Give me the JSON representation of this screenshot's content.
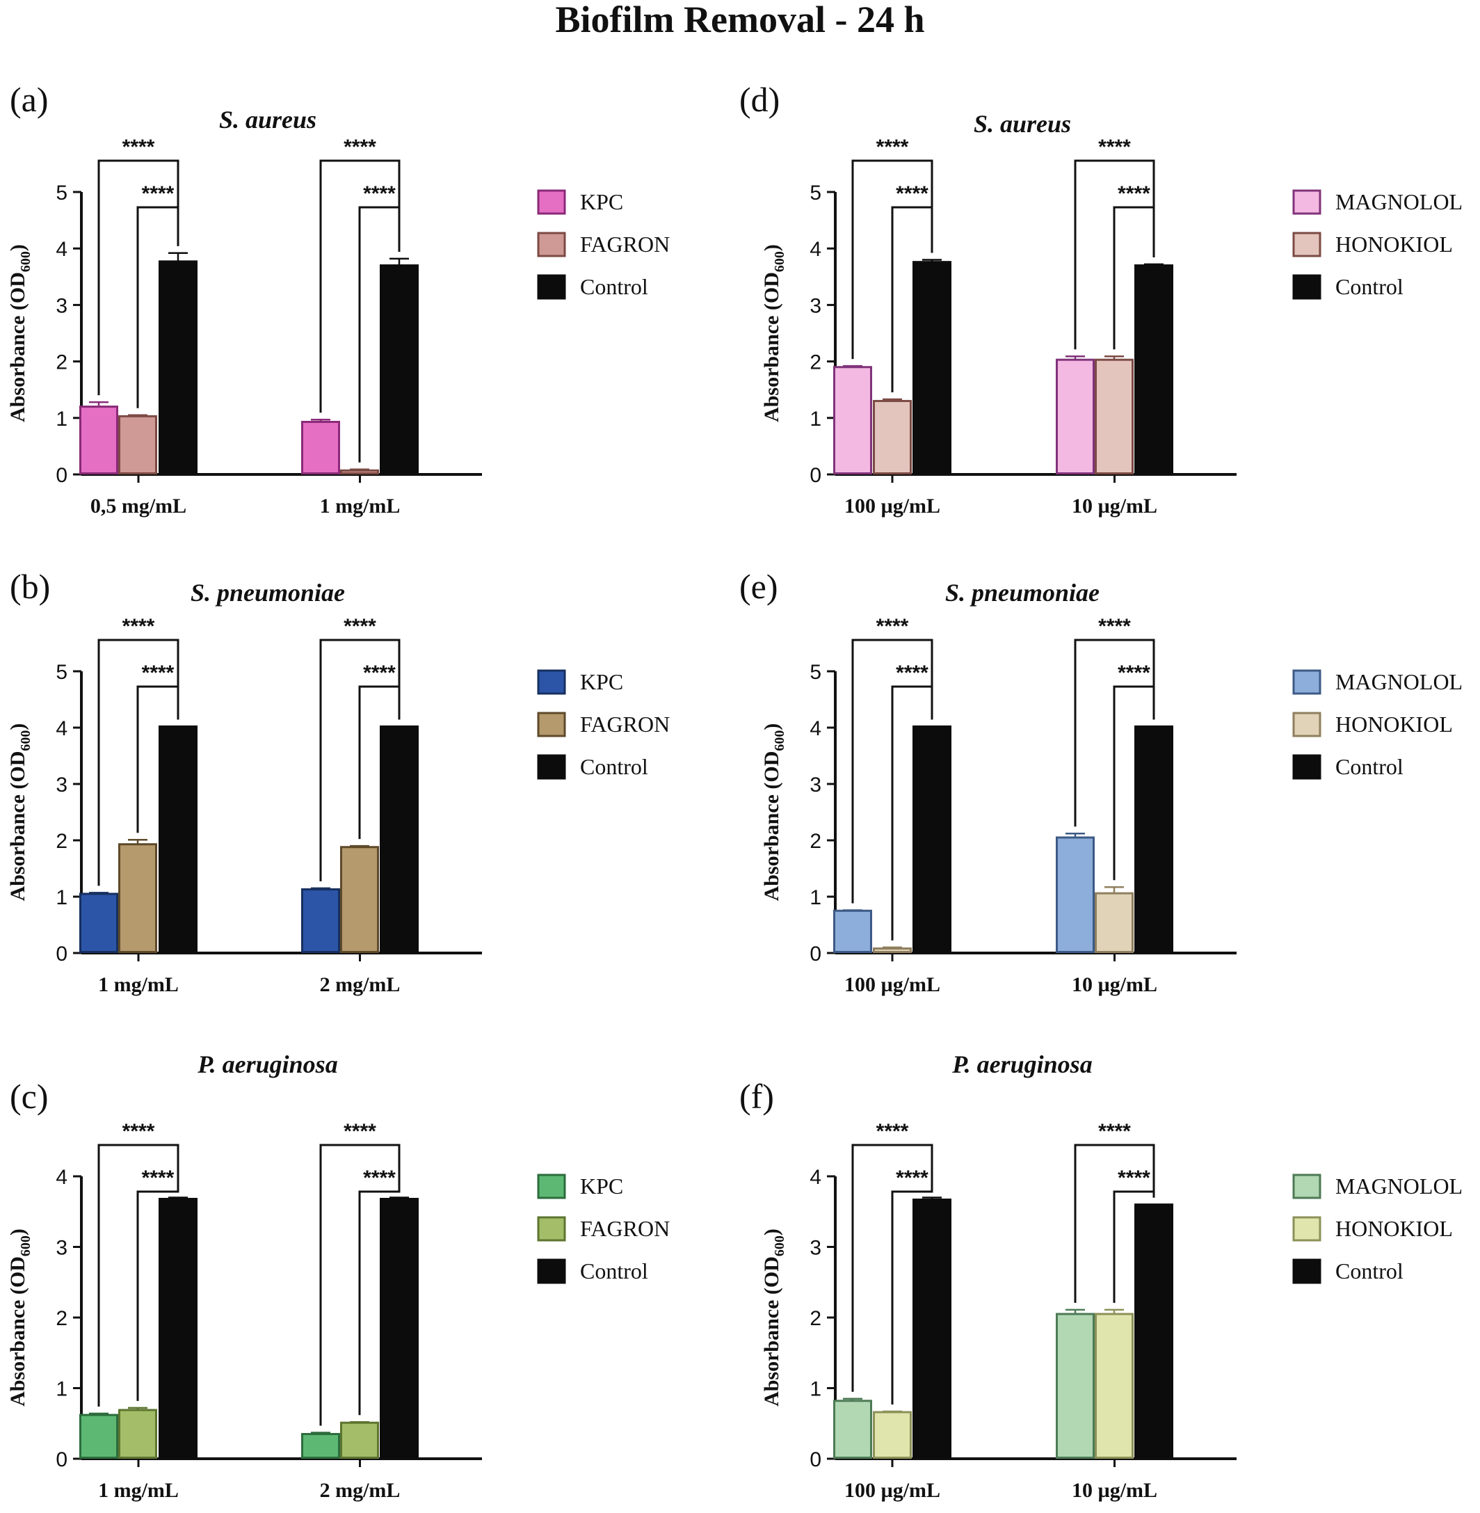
{
  "title": "Biofilm Removal - 24 h",
  "colors": {
    "axis": "#111111",
    "bracket": "#111111"
  },
  "chart_data": [
    {
      "panel": "(a)",
      "type": "bar",
      "title": "S. aureus",
      "ylabel": "Absorbance (OD",
      "ylabel_sub": "600",
      "ylabel_end": ")",
      "ylim": [
        0,
        5
      ],
      "yticks": [
        "0",
        "1",
        "2",
        "3",
        "4",
        "5"
      ],
      "categories": [
        "0,5 mg/mL",
        "1 mg/mL"
      ],
      "series": [
        {
          "name": "KPC",
          "values": [
            1.2,
            0.93
          ],
          "errors": [
            0.08,
            0.04
          ],
          "fill": "#e56fc3",
          "stroke": "#8a2a78"
        },
        {
          "name": "FAGRON",
          "values": [
            1.03,
            0.07
          ],
          "errors": [
            0.02,
            0.02
          ],
          "fill": "#cf9a95",
          "stroke": "#7c4a44"
        },
        {
          "name": "Control",
          "values": [
            3.77,
            3.7
          ],
          "errors": [
            0.15,
            0.12
          ],
          "fill": "#0c0c0c",
          "stroke": "#0c0c0c"
        }
      ],
      "significance": [
        "****",
        "****",
        "****",
        "****"
      ]
    },
    {
      "panel": "(b)",
      "type": "bar",
      "title": "S. pneumoniae",
      "ylabel": "Absorbance (OD",
      "ylabel_sub": "600",
      "ylabel_end": ")",
      "ylim": [
        0,
        5
      ],
      "yticks": [
        "0",
        "1",
        "2",
        "3",
        "4",
        "5"
      ],
      "categories": [
        "1 mg/mL",
        "2 mg/mL"
      ],
      "series": [
        {
          "name": "KPC",
          "values": [
            1.05,
            1.13
          ],
          "errors": [
            0.02,
            0.02
          ],
          "fill": "#2c55a8",
          "stroke": "#17305f"
        },
        {
          "name": "FAGRON",
          "values": [
            1.93,
            1.88
          ],
          "errors": [
            0.08,
            0.02
          ],
          "fill": "#b59a6e",
          "stroke": "#5e4a2a"
        },
        {
          "name": "Control",
          "values": [
            4.02,
            4.02
          ],
          "errors": [
            0,
            0
          ],
          "fill": "#0c0c0c",
          "stroke": "#0c0c0c"
        }
      ],
      "significance": [
        "****",
        "****",
        "****",
        "****"
      ]
    },
    {
      "panel": "(c)",
      "type": "bar",
      "title": "P. aeruginosa",
      "ylabel": "Absorbance (OD",
      "ylabel_sub": "600",
      "ylabel_end": ")",
      "ylim": [
        0,
        4
      ],
      "yticks": [
        "0",
        "1",
        "2",
        "3",
        "4"
      ],
      "categories": [
        "1 mg/mL",
        "2 mg/mL"
      ],
      "series": [
        {
          "name": "KPC",
          "values": [
            0.62,
            0.35
          ],
          "errors": [
            0.02,
            0.02
          ],
          "fill": "#5db874",
          "stroke": "#2c6d3d"
        },
        {
          "name": "FAGRON",
          "values": [
            0.69,
            0.51
          ],
          "errors": [
            0.03,
            0.01
          ],
          "fill": "#a4bd69",
          "stroke": "#5d7530"
        },
        {
          "name": "Control",
          "values": [
            3.68,
            3.68
          ],
          "errors": [
            0.02,
            0.02
          ],
          "fill": "#0c0c0c",
          "stroke": "#0c0c0c"
        }
      ],
      "significance": [
        "****",
        "****",
        "****",
        "****"
      ]
    },
    {
      "panel": "(d)",
      "type": "bar",
      "title": "S. aureus",
      "ylabel": "Absorbance (OD",
      "ylabel_sub": "600",
      "ylabel_end": ")",
      "ylim": [
        0,
        5
      ],
      "yticks": [
        "0",
        "1",
        "2",
        "3",
        "4",
        "5"
      ],
      "categories": [
        "100 µg/mL",
        "10 µg/mL"
      ],
      "series": [
        {
          "name": "MAGNOLOL",
          "values": [
            1.9,
            2.03
          ],
          "errors": [
            0.02,
            0.06
          ],
          "fill": "#f3b9e2",
          "stroke": "#80337a"
        },
        {
          "name": "HONOKIOL",
          "values": [
            1.3,
            2.03
          ],
          "errors": [
            0.03,
            0.06
          ],
          "fill": "#e3c5be",
          "stroke": "#7c4a44"
        },
        {
          "name": "Control",
          "values": [
            3.76,
            3.7
          ],
          "errors": [
            0.04,
            0.02
          ],
          "fill": "#0c0c0c",
          "stroke": "#0c0c0c"
        }
      ],
      "significance": [
        "****",
        "****",
        "****",
        "****"
      ]
    },
    {
      "panel": "(e)",
      "type": "bar",
      "title": "S. pneumoniae",
      "ylabel": "Absorbance (OD",
      "ylabel_sub": "600",
      "ylabel_end": ")",
      "ylim": [
        0,
        5
      ],
      "yticks": [
        "0",
        "1",
        "2",
        "3",
        "4",
        "5"
      ],
      "categories": [
        "100 µg/mL",
        "10 µg/mL"
      ],
      "series": [
        {
          "name": "MAGNOLOL",
          "values": [
            0.75,
            2.05
          ],
          "errors": [
            0.01,
            0.07
          ],
          "fill": "#8daedb",
          "stroke": "#3d5a85"
        },
        {
          "name": "HONOKIOL",
          "values": [
            0.08,
            1.06
          ],
          "errors": [
            0.02,
            0.11
          ],
          "fill": "#e0d3b8",
          "stroke": "#8f7f5e"
        },
        {
          "name": "Control",
          "values": [
            4.02,
            4.02
          ],
          "errors": [
            0,
            0
          ],
          "fill": "#0c0c0c",
          "stroke": "#0c0c0c"
        }
      ],
      "significance": [
        "****",
        "****",
        "****",
        "****"
      ]
    },
    {
      "panel": "(f)",
      "type": "bar",
      "title": "P. aeruginosa",
      "ylabel": "Absorbance (OD",
      "ylabel_sub": "600",
      "ylabel_end": ")",
      "ylim": [
        0,
        4
      ],
      "yticks": [
        "0",
        "1",
        "2",
        "3",
        "4"
      ],
      "categories": [
        "100 µg/mL",
        "10 µg/mL"
      ],
      "series": [
        {
          "name": "MAGNOLOL",
          "values": [
            0.82,
            2.05
          ],
          "errors": [
            0.03,
            0.06
          ],
          "fill": "#b1d7b3",
          "stroke": "#4d7a55"
        },
        {
          "name": "HONOKIOL",
          "values": [
            0.66,
            2.05
          ],
          "errors": [
            0.01,
            0.06
          ],
          "fill": "#dfe5ad",
          "stroke": "#8c9158"
        },
        {
          "name": "Control",
          "values": [
            3.67,
            3.6
          ],
          "errors": [
            0.03,
            0
          ],
          "fill": "#0c0c0c",
          "stroke": "#0c0c0c"
        }
      ],
      "significance": [
        "****",
        "****",
        "****",
        "****"
      ]
    }
  ]
}
